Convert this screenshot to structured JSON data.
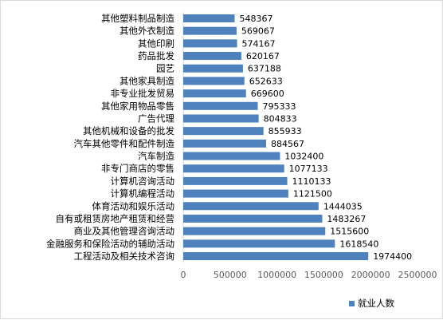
{
  "chart_data": {
    "type": "bar",
    "orientation": "horizontal",
    "categories": [
      "工程活动及相关技术咨询",
      "金融服务和保险活动的辅助活动",
      "商业及其他管理咨询活动",
      "自有或租赁房地产租赁和经营",
      "体育活动和娱乐活动",
      "计算机编程活动",
      "计算机咨询活动",
      "非专门商店的零售",
      "汽车制造",
      "汽车其他零件和配件制造",
      "其他机械和设备的批发",
      "广告代理",
      "其他家用物品零售",
      "非专业批发贸易",
      "其他家具制造",
      "园艺",
      "药品批发",
      "其他印刷",
      "其他外衣制造",
      "其他塑料制品制造"
    ],
    "series": [
      {
        "name": "就业人数",
        "values": [
          1974400,
          1618540,
          1515600,
          1483267,
          1444035,
          1121500,
          1110133,
          1077133,
          1032400,
          884567,
          855933,
          804833,
          795333,
          669600,
          652633,
          637188,
          620167,
          574167,
          569067,
          548367
        ]
      }
    ],
    "value_axis": {
      "min": 0,
      "max": 2500000,
      "ticks": [
        "0",
        "500000",
        "1000000",
        "1500000",
        "2000000",
        "2500000"
      ]
    },
    "grid": false,
    "legend_position": "bottom-right",
    "bar_color": "#4f81bd"
  }
}
